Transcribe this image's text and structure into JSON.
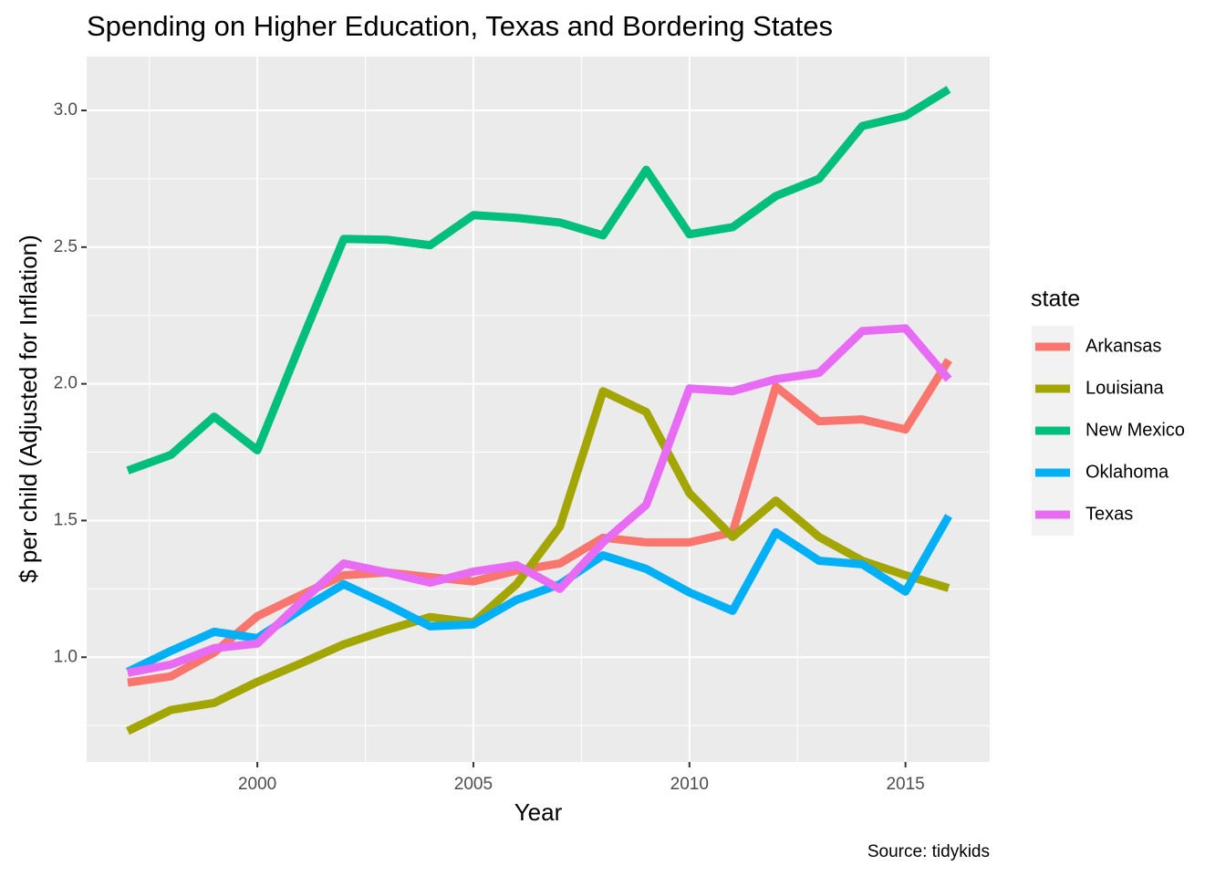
{
  "chart_data": {
    "type": "line",
    "title": "Spending on Higher Education, Texas and Bordering States",
    "x_label": "Year",
    "y_label": "$ per child (Adjusted for Inflation)",
    "caption": "Source: tidykids",
    "legend_title": "state",
    "legend_position": "right",
    "grid": true,
    "x": [
      1997,
      1998,
      1999,
      2000,
      2001,
      2002,
      2003,
      2004,
      2005,
      2006,
      2007,
      2008,
      2009,
      2010,
      2011,
      2012,
      2013,
      2014,
      2015,
      2016
    ],
    "xlim": [
      1996.05,
      2016.95
    ],
    "xticks": [
      2000,
      2005,
      2010,
      2015
    ],
    "ylim": [
      0.617,
      3.197
    ],
    "yticks": [
      {
        "value": 1,
        "label": "1.0"
      },
      1.5,
      {
        "value": 2,
        "label": "2.0"
      },
      2.5,
      {
        "value": 3,
        "label": "3.0"
      }
    ],
    "series": [
      {
        "name": "Arkansas",
        "color": "#F8766D",
        "values": [
          0.907,
          0.93,
          1.017,
          1.15,
          1.227,
          1.3,
          1.31,
          1.293,
          1.277,
          1.317,
          1.343,
          1.437,
          1.42,
          1.42,
          1.457,
          1.99,
          1.863,
          1.87,
          1.833,
          2.087
        ]
      },
      {
        "name": "Louisiana",
        "color": "#A3A500",
        "values": [
          0.73,
          0.807,
          0.833,
          0.91,
          0.977,
          1.047,
          1.1,
          1.147,
          1.127,
          1.267,
          1.477,
          1.973,
          1.897,
          1.6,
          1.44,
          1.573,
          1.44,
          1.353,
          1.3,
          1.253
        ]
      },
      {
        "name": "New Mexico",
        "color": "#00BF7D",
        "values": [
          1.683,
          1.74,
          1.88,
          1.757,
          2.147,
          2.53,
          2.527,
          2.507,
          2.617,
          2.607,
          2.59,
          2.543,
          2.783,
          2.547,
          2.573,
          2.687,
          2.75,
          2.943,
          2.98,
          3.077
        ]
      },
      {
        "name": "Oklahoma",
        "color": "#00B0F6",
        "values": [
          0.947,
          1.023,
          1.093,
          1.07,
          1.173,
          1.267,
          1.193,
          1.113,
          1.12,
          1.21,
          1.267,
          1.373,
          1.323,
          1.237,
          1.17,
          1.457,
          1.353,
          1.34,
          1.24,
          1.517
        ]
      },
      {
        "name": "Texas",
        "color": "#E76BF3",
        "values": [
          0.943,
          0.973,
          1.033,
          1.05,
          1.2,
          1.343,
          1.31,
          1.273,
          1.313,
          1.337,
          1.25,
          1.42,
          1.557,
          1.983,
          1.973,
          2.017,
          2.04,
          2.193,
          2.203,
          2.017
        ]
      }
    ]
  }
}
